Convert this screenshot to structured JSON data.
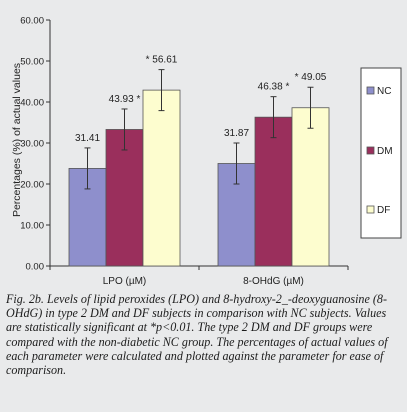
{
  "chart_data": {
    "type": "bar",
    "categories": [
      "LPO (µM)",
      "8-OHdG (µM)"
    ],
    "ylabel": "Percentages (%) of actual values",
    "ylim": [
      0,
      60
    ],
    "yticks": [
      "0.00",
      "10.00",
      "20.00",
      "30.00",
      "40.00",
      "50.00",
      "60.00"
    ],
    "grid": false,
    "legend_position": "right",
    "series": [
      {
        "name": "NC",
        "color": "#8e8fcc",
        "values": [
          23.8,
          25.0
        ],
        "errors": [
          5.0,
          5.0
        ],
        "labels": [
          "31.41",
          "31.87"
        ]
      },
      {
        "name": "DM",
        "color": "#9a2f5c",
        "values": [
          33.3,
          36.3
        ],
        "errors": [
          5.0,
          5.0
        ],
        "labels": [
          "43.93 *",
          "46.38 *"
        ]
      },
      {
        "name": "DF",
        "color": "#fdfdcf",
        "values": [
          42.9,
          38.6
        ],
        "errors": [
          5.0,
          5.0
        ],
        "labels": [
          "* 56.61",
          "* 49.05"
        ]
      }
    ]
  },
  "caption": "Fig. 2b. Levels of lipid peroxides (LPO) and 8-hydroxy-2_-deoxyguanosine (8-OHdG) in type 2 DM and DF subjects in comparison with NC subjects. Values are statistically significant at *p<0.01. The type 2 DM and DF groups were compared with the non-diabetic NC group. The percentages of actual values of each parameter were calculated and plotted against the parameter for ease of comparison."
}
